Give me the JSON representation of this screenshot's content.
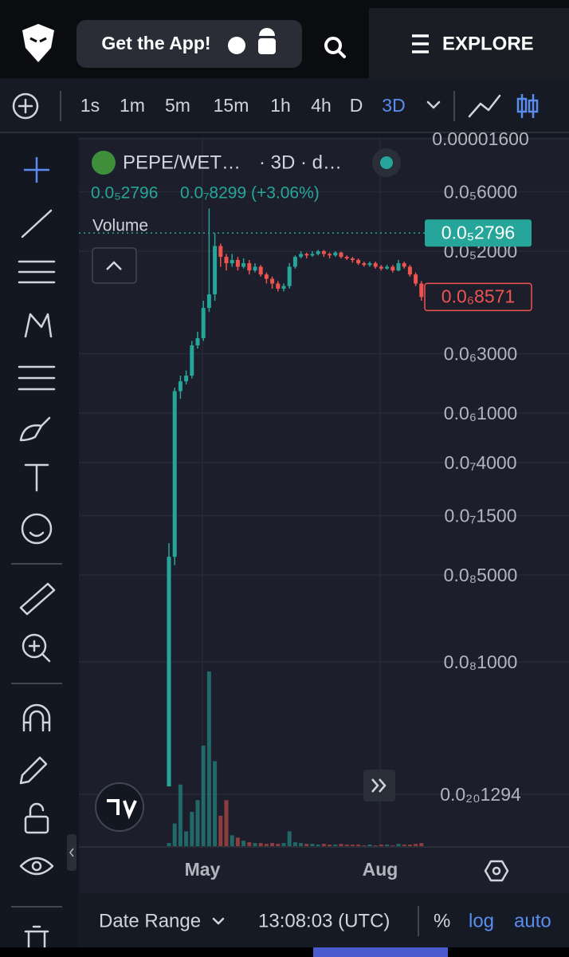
{
  "header": {
    "app_button": "Get the App!",
    "explore": "EXPLORE"
  },
  "timeframes": [
    "1s",
    "1m",
    "5m",
    "15m",
    "1h",
    "4h",
    "D",
    "3D"
  ],
  "legend": {
    "symbol": "PEPE/WET…",
    "interval": "· 3D · d…",
    "change": "0.0₇8299 (+3.06%)",
    "volume_label": "Volume"
  },
  "chart": {
    "type": "candlestick",
    "log_scale": true,
    "grid": true,
    "up_color": "#26a69a",
    "down_color": "#ef5350",
    "ylim": [
      3.26e-11,
      1.65e-05
    ],
    "yticks": [
      {
        "value": 1.6e-05,
        "label": "0.00001600"
      },
      {
        "value": 6e-06,
        "label": "0.0₅6000"
      },
      {
        "value": 2e-06,
        "label": "0.0₅2000"
      },
      {
        "value": 3e-07,
        "label": "0.0₆3000"
      },
      {
        "value": 1e-07,
        "label": "0.0₆1000"
      },
      {
        "value": 4e-08,
        "label": "0.0₇4000"
      },
      {
        "value": 1.5e-08,
        "label": "0.0₇1500"
      },
      {
        "value": 5e-09,
        "label": "0.0₈5000"
      },
      {
        "value": 1e-09,
        "label": "0.0₈1000"
      },
      {
        "value": 1.294e-21,
        "label": "0.0₂₀1294"
      }
    ],
    "last_price": {
      "value": 2.796e-06,
      "label": "0.0₅2796"
    },
    "current_price": {
      "value": 8.571e-07,
      "label": "0.0₆8571"
    },
    "x_labels": [
      "May",
      "Aug"
    ],
    "open": [
      1e-10,
      7e-09,
      1.5e-07,
      1.8e-07,
      2e-07,
      3.5e-07,
      4e-07,
      7e-07,
      9e-07,
      2.2e-06,
      1.8e-06,
      1.6e-06,
      1.7e-06,
      1.5e-06,
      1.6e-06,
      1.4e-06,
      1.5e-06,
      1.3e-06,
      1.2e-06,
      1.1e-06,
      1e-06,
      1.05e-06,
      1.5e-06,
      1.8e-06,
      1.9e-06,
      1.85e-06,
      1.9e-06,
      2e-06,
      1.9e-06,
      1.85e-06,
      1.95e-06,
      1.8e-06,
      1.75e-06,
      1.7e-06,
      1.6e-06,
      1.55e-06,
      1.6e-06,
      1.5e-06,
      1.45e-06,
      1.5e-06,
      1.4e-06,
      1.6e-06,
      1.5e-06,
      1.3e-06,
      1.1e-06
    ],
    "high": [
      9e-09,
      1.6e-07,
      2e-07,
      2.2e-07,
      3.8e-07,
      4.5e-07,
      8e-07,
      4.4e-06,
      2.8e-06,
      2.3e-06,
      1.9e-06,
      1.9e-06,
      1.8e-06,
      1.75e-06,
      1.7e-06,
      1.6e-06,
      1.55e-06,
      1.35e-06,
      1.25e-06,
      1.15e-06,
      1.1e-06,
      1.6e-06,
      1.85e-06,
      2e-06,
      1.95e-06,
      2e-06,
      2.05e-06,
      2.05e-06,
      1.95e-06,
      2e-06,
      1.98e-06,
      1.85e-06,
      1.8e-06,
      1.75e-06,
      1.65e-06,
      1.65e-06,
      1.65e-06,
      1.55e-06,
      1.55e-06,
      1.55e-06,
      1.7e-06,
      1.65e-06,
      1.55e-06,
      1.35e-06,
      1.15e-06
    ],
    "low": [
      1e-10,
      6e-09,
      1.3e-07,
      1.7e-07,
      1.9e-07,
      3.3e-07,
      3.8e-07,
      6.5e-07,
      8e-07,
      1.5e-06,
      1.4e-06,
      1.5e-06,
      1.4e-06,
      1.45e-06,
      1.3e-06,
      1.35e-06,
      1.25e-06,
      1.1e-06,
      1e-06,
      9.5e-07,
      9.5e-07,
      1e-06,
      1.45e-06,
      1.75e-06,
      1.75e-06,
      1.8e-06,
      1.85e-06,
      1.8e-06,
      1.75e-06,
      1.8e-06,
      1.75e-06,
      1.7e-06,
      1.62e-06,
      1.55e-06,
      1.5e-06,
      1.5e-06,
      1.45e-06,
      1.4e-06,
      1.42e-06,
      1.35e-06,
      1.38e-06,
      1.45e-06,
      1.25e-06,
      1.05e-06,
      8e-07
    ],
    "close": [
      7e-09,
      1.5e-07,
      1.8e-07,
      2e-07,
      3.5e-07,
      4e-07,
      7e-07,
      9e-07,
      2.2e-06,
      1.8e-06,
      1.6e-06,
      1.7e-06,
      1.5e-06,
      1.6e-06,
      1.4e-06,
      1.5e-06,
      1.3e-06,
      1.2e-06,
      1.1e-06,
      1e-06,
      1.05e-06,
      1.5e-06,
      1.8e-06,
      1.9e-06,
      1.85e-06,
      1.9e-06,
      2e-06,
      1.9e-06,
      1.85e-06,
      1.95e-06,
      1.8e-06,
      1.75e-06,
      1.7e-06,
      1.6e-06,
      1.55e-06,
      1.6e-06,
      1.5e-06,
      1.45e-06,
      1.5e-06,
      1.4e-06,
      1.6e-06,
      1.5e-06,
      1.3e-06,
      1.1e-06,
      8.571e-07
    ],
    "volume": [
      5,
      30,
      80,
      20,
      45,
      60,
      130,
      225,
      110,
      40,
      60,
      15,
      12,
      8,
      6,
      5,
      5,
      4,
      5,
      4,
      5,
      20,
      6,
      5,
      4,
      4,
      3,
      4,
      3,
      3,
      4,
      3,
      3,
      3,
      2,
      3,
      2,
      3,
      3,
      2,
      4,
      3,
      3,
      4,
      5
    ]
  },
  "footer": {
    "date_range": "Date Range",
    "time": "13:08:03 (UTC)",
    "percent": "%",
    "log": "log",
    "auto": "auto"
  }
}
